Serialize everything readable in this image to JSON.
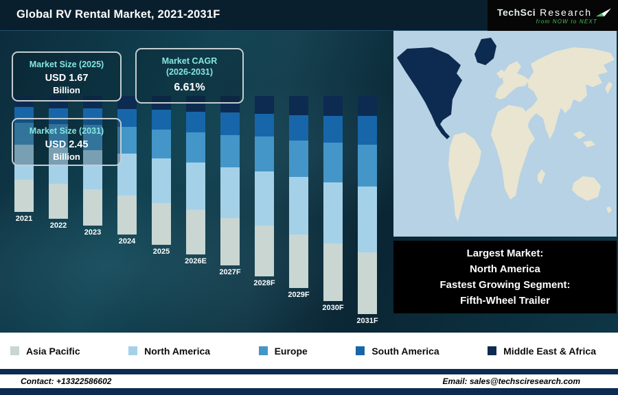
{
  "header": {
    "title": "Global RV Rental Market, 2021-2031F",
    "logo": {
      "brand_primary": "TechSci",
      "brand_secondary": "Research",
      "tagline": "from NOW to NEXT"
    }
  },
  "info_boxes": [
    {
      "label": "Market Size (2025)",
      "value": "USD 1.67",
      "unit": "Billion"
    },
    {
      "label": "Market CAGR\n(2026-2031)",
      "value": "6.61%",
      "unit": ""
    },
    {
      "label": "Market Size (2031)",
      "value": "USD 2.45",
      "unit": "Billion"
    }
  ],
  "chart_data": {
    "type": "bar",
    "stacked": true,
    "title": "Global RV Rental Market, 2021-2031F",
    "unit": "USD Billion",
    "categories": [
      "2021",
      "2022",
      "2023",
      "2024",
      "2025",
      "2026E",
      "2027F",
      "2028F",
      "2029F",
      "2030F",
      "2031F"
    ],
    "series": [
      {
        "name": "Asia Pacific",
        "color": "#c9d6d2",
        "values": [
          0.36,
          0.39,
          0.41,
          0.44,
          0.47,
          0.5,
          0.53,
          0.57,
          0.6,
          0.64,
          0.69
        ]
      },
      {
        "name": "North America",
        "color": "#a5d1e8",
        "values": [
          0.39,
          0.41,
          0.44,
          0.47,
          0.5,
          0.53,
          0.57,
          0.61,
          0.65,
          0.69,
          0.74
        ]
      },
      {
        "name": "Europe",
        "color": "#4496c8",
        "values": [
          0.25,
          0.26,
          0.28,
          0.3,
          0.32,
          0.34,
          0.36,
          0.39,
          0.41,
          0.44,
          0.47
        ]
      },
      {
        "name": "South America",
        "color": "#1766a9",
        "values": [
          0.17,
          0.18,
          0.19,
          0.2,
          0.22,
          0.23,
          0.25,
          0.26,
          0.28,
          0.3,
          0.32
        ]
      },
      {
        "name": "Middle East & Africa",
        "color": "#0d2b50",
        "values": [
          0.13,
          0.14,
          0.14,
          0.15,
          0.16,
          0.18,
          0.19,
          0.2,
          0.22,
          0.23,
          0.23
        ]
      }
    ],
    "totals": [
      1.3,
      1.38,
      1.46,
      1.56,
      1.67,
      1.78,
      1.9,
      2.03,
      2.16,
      2.3,
      2.45
    ],
    "ylim": [
      0,
      2.6
    ],
    "grid": false,
    "legend_position": "bottom",
    "annotations": [
      "Market Size (2025): USD 1.67 Billion",
      "Market CAGR (2026-2031): 6.61%",
      "Market Size (2031): USD 2.45 Billion"
    ]
  },
  "map_callout": {
    "lines": [
      "Largest Market:",
      "North America",
      "Fastest Growing Segment:",
      "Fifth-Wheel Trailer"
    ]
  },
  "legend": [
    {
      "label": "Asia Pacific",
      "color": "#c9d6d2"
    },
    {
      "label": "North America",
      "color": "#a5d1e8"
    },
    {
      "label": "Europe",
      "color": "#4496c8"
    },
    {
      "label": "South America",
      "color": "#1766a9"
    },
    {
      "label": "Middle East & Africa",
      "color": "#0d2b50"
    }
  ],
  "map": {
    "highlight_region": "North America",
    "colors": {
      "ocean": "#b6d2e4",
      "land": "#e9e5d1",
      "highlight": "#0d2b50"
    }
  },
  "footer": {
    "contact": "Contact: +13322586602",
    "email": "Email: sales@techsciresearch.com"
  }
}
